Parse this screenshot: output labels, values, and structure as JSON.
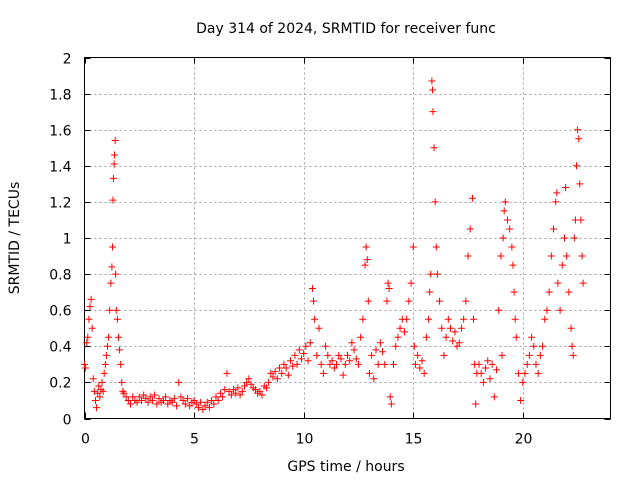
{
  "chart_data": {
    "type": "scatter",
    "title": "Day 314 of 2024, SRMTID for receiver func",
    "xlabel": "GPS time / hours",
    "ylabel": "SRMTID / TECUs",
    "xlim": [
      0,
      24
    ],
    "ylim": [
      0,
      2
    ],
    "xticks": [
      0,
      5,
      10,
      15,
      20
    ],
    "xtick_labels": [
      "0",
      "5",
      "10",
      "15",
      "20"
    ],
    "yticks": [
      0,
      0.2,
      0.4,
      0.6,
      0.8,
      1,
      1.2,
      1.4,
      1.6,
      1.8,
      2
    ],
    "ytick_labels": [
      "0",
      "0.2",
      "0.4",
      "0.6",
      "0.8",
      "1",
      "1.2",
      "1.4",
      "1.6",
      "1.8",
      "2"
    ],
    "grid": true,
    "marker": "+",
    "color": "#ff0000",
    "series": [
      {
        "name": "SRMTID",
        "points": [
          [
            0.0,
            0.3
          ],
          [
            0.05,
            0.28
          ],
          [
            0.1,
            0.42
          ],
          [
            0.15,
            0.45
          ],
          [
            0.2,
            0.55
          ],
          [
            0.25,
            0.62
          ],
          [
            0.3,
            0.66
          ],
          [
            0.35,
            0.5
          ],
          [
            0.4,
            0.22
          ],
          [
            0.45,
            0.15
          ],
          [
            0.5,
            0.1
          ],
          [
            0.55,
            0.06
          ],
          [
            0.6,
            0.14
          ],
          [
            0.65,
            0.18
          ],
          [
            0.7,
            0.12
          ],
          [
            0.75,
            0.16
          ],
          [
            0.8,
            0.2
          ],
          [
            0.85,
            0.15
          ],
          [
            0.9,
            0.25
          ],
          [
            0.95,
            0.3
          ],
          [
            1.0,
            0.35
          ],
          [
            1.05,
            0.4
          ],
          [
            1.1,
            0.45
          ],
          [
            1.15,
            0.6
          ],
          [
            1.2,
            0.75
          ],
          [
            1.25,
            0.84
          ],
          [
            1.28,
            0.95
          ],
          [
            1.3,
            1.21
          ],
          [
            1.32,
            1.33
          ],
          [
            1.35,
            1.41
          ],
          [
            1.37,
            1.46
          ],
          [
            1.4,
            1.54
          ],
          [
            1.42,
            0.8
          ],
          [
            1.45,
            0.6
          ],
          [
            1.5,
            0.55
          ],
          [
            1.55,
            0.45
          ],
          [
            1.6,
            0.38
          ],
          [
            1.65,
            0.3
          ],
          [
            1.7,
            0.2
          ],
          [
            1.75,
            0.15
          ],
          [
            1.8,
            0.14
          ],
          [
            1.9,
            0.12
          ],
          [
            2.0,
            0.1
          ],
          [
            2.1,
            0.08
          ],
          [
            2.2,
            0.12
          ],
          [
            2.3,
            0.1
          ],
          [
            2.4,
            0.09
          ],
          [
            2.5,
            0.12
          ],
          [
            2.6,
            0.1
          ],
          [
            2.7,
            0.13
          ],
          [
            2.8,
            0.11
          ],
          [
            2.9,
            0.09
          ],
          [
            3.0,
            0.12
          ],
          [
            3.1,
            0.1
          ],
          [
            3.2,
            0.13
          ],
          [
            3.3,
            0.08
          ],
          [
            3.4,
            0.11
          ],
          [
            3.5,
            0.09
          ],
          [
            3.6,
            0.1
          ],
          [
            3.7,
            0.12
          ],
          [
            3.8,
            0.08
          ],
          [
            3.9,
            0.1
          ],
          [
            4.0,
            0.09
          ],
          [
            4.1,
            0.11
          ],
          [
            4.2,
            0.07
          ],
          [
            4.3,
            0.2
          ],
          [
            4.4,
            0.12
          ],
          [
            4.5,
            0.1
          ],
          [
            4.6,
            0.08
          ],
          [
            4.7,
            0.11
          ],
          [
            4.8,
            0.07
          ],
          [
            4.9,
            0.09
          ],
          [
            5.0,
            0.1
          ],
          [
            5.1,
            0.08
          ],
          [
            5.2,
            0.06
          ],
          [
            5.3,
            0.09
          ],
          [
            5.4,
            0.05
          ],
          [
            5.5,
            0.07
          ],
          [
            5.6,
            0.09
          ],
          [
            5.7,
            0.06
          ],
          [
            5.8,
            0.1
          ],
          [
            5.9,
            0.08
          ],
          [
            6.0,
            0.12
          ],
          [
            6.1,
            0.1
          ],
          [
            6.2,
            0.14
          ],
          [
            6.3,
            0.12
          ],
          [
            6.4,
            0.16
          ],
          [
            6.5,
            0.25
          ],
          [
            6.6,
            0.15
          ],
          [
            6.7,
            0.13
          ],
          [
            6.8,
            0.16
          ],
          [
            6.9,
            0.14
          ],
          [
            7.0,
            0.17
          ],
          [
            7.1,
            0.13
          ],
          [
            7.2,
            0.15
          ],
          [
            7.3,
            0.18
          ],
          [
            7.4,
            0.2
          ],
          [
            7.5,
            0.22
          ],
          [
            7.6,
            0.19
          ],
          [
            7.7,
            0.17
          ],
          [
            7.8,
            0.16
          ],
          [
            7.9,
            0.14
          ],
          [
            8.0,
            0.15
          ],
          [
            8.1,
            0.13
          ],
          [
            8.2,
            0.18
          ],
          [
            8.3,
            0.17
          ],
          [
            8.4,
            0.2
          ],
          [
            8.5,
            0.25
          ],
          [
            8.6,
            0.23
          ],
          [
            8.7,
            0.26
          ],
          [
            8.8,
            0.22
          ],
          [
            8.9,
            0.28
          ],
          [
            9.0,
            0.25
          ],
          [
            9.1,
            0.3
          ],
          [
            9.2,
            0.28
          ],
          [
            9.3,
            0.24
          ],
          [
            9.4,
            0.32
          ],
          [
            9.5,
            0.29
          ],
          [
            9.6,
            0.35
          ],
          [
            9.7,
            0.3
          ],
          [
            9.8,
            0.38
          ],
          [
            9.9,
            0.33
          ],
          [
            10.0,
            0.36
          ],
          [
            10.1,
            0.4
          ],
          [
            10.2,
            0.32
          ],
          [
            10.3,
            0.42
          ],
          [
            10.4,
            0.72
          ],
          [
            10.45,
            0.65
          ],
          [
            10.5,
            0.55
          ],
          [
            10.6,
            0.35
          ],
          [
            10.7,
            0.5
          ],
          [
            10.8,
            0.3
          ],
          [
            10.9,
            0.25
          ],
          [
            11.0,
            0.4
          ],
          [
            11.1,
            0.35
          ],
          [
            11.2,
            0.3
          ],
          [
            11.3,
            0.32
          ],
          [
            11.4,
            0.28
          ],
          [
            11.5,
            0.3
          ],
          [
            11.6,
            0.35
          ],
          [
            11.7,
            0.33
          ],
          [
            11.8,
            0.24
          ],
          [
            11.9,
            0.3
          ],
          [
            12.0,
            0.35
          ],
          [
            12.1,
            0.32
          ],
          [
            12.2,
            0.42
          ],
          [
            12.3,
            0.38
          ],
          [
            12.4,
            0.33
          ],
          [
            12.5,
            0.3
          ],
          [
            12.6,
            0.45
          ],
          [
            12.7,
            0.55
          ],
          [
            12.8,
            0.85
          ],
          [
            12.85,
            0.95
          ],
          [
            12.9,
            0.88
          ],
          [
            12.95,
            0.65
          ],
          [
            13.0,
            0.25
          ],
          [
            13.1,
            0.35
          ],
          [
            13.2,
            0.22
          ],
          [
            13.3,
            0.38
          ],
          [
            13.4,
            0.3
          ],
          [
            13.5,
            0.42
          ],
          [
            13.6,
            0.37
          ],
          [
            13.7,
            0.3
          ],
          [
            13.8,
            0.65
          ],
          [
            13.85,
            0.75
          ],
          [
            13.9,
            0.72
          ],
          [
            13.95,
            0.12
          ],
          [
            14.0,
            0.08
          ],
          [
            14.1,
            0.3
          ],
          [
            14.2,
            0.4
          ],
          [
            14.3,
            0.45
          ],
          [
            14.4,
            0.5
          ],
          [
            14.5,
            0.55
          ],
          [
            14.6,
            0.48
          ],
          [
            14.7,
            0.55
          ],
          [
            14.8,
            0.65
          ],
          [
            14.9,
            0.75
          ],
          [
            15.0,
            0.95
          ],
          [
            15.05,
            0.4
          ],
          [
            15.1,
            0.3
          ],
          [
            15.2,
            0.35
          ],
          [
            15.3,
            0.28
          ],
          [
            15.4,
            0.32
          ],
          [
            15.5,
            0.25
          ],
          [
            15.6,
            0.45
          ],
          [
            15.7,
            0.55
          ],
          [
            15.75,
            0.7
          ],
          [
            15.8,
            0.8
          ],
          [
            15.85,
            1.87
          ],
          [
            15.88,
            1.82
          ],
          [
            15.9,
            1.7
          ],
          [
            15.95,
            1.5
          ],
          [
            16.0,
            1.2
          ],
          [
            16.05,
            0.95
          ],
          [
            16.1,
            0.8
          ],
          [
            16.2,
            0.65
          ],
          [
            16.3,
            0.5
          ],
          [
            16.4,
            0.35
          ],
          [
            16.5,
            0.45
          ],
          [
            16.6,
            0.55
          ],
          [
            16.7,
            0.5
          ],
          [
            16.8,
            0.43
          ],
          [
            16.9,
            0.48
          ],
          [
            17.0,
            0.4
          ],
          [
            17.1,
            0.42
          ],
          [
            17.2,
            0.5
          ],
          [
            17.3,
            0.55
          ],
          [
            17.4,
            0.65
          ],
          [
            17.5,
            0.9
          ],
          [
            17.6,
            1.05
          ],
          [
            17.7,
            1.22
          ],
          [
            17.75,
            0.55
          ],
          [
            17.8,
            0.3
          ],
          [
            17.85,
            0.08
          ],
          [
            17.9,
            0.25
          ],
          [
            18.0,
            0.3
          ],
          [
            18.1,
            0.25
          ],
          [
            18.2,
            0.2
          ],
          [
            18.3,
            0.28
          ],
          [
            18.4,
            0.32
          ],
          [
            18.5,
            0.22
          ],
          [
            18.6,
            0.3
          ],
          [
            18.7,
            0.12
          ],
          [
            18.8,
            0.27
          ],
          [
            18.9,
            0.6
          ],
          [
            19.0,
            0.9
          ],
          [
            19.05,
            0.35
          ],
          [
            19.1,
            1.0
          ],
          [
            19.15,
            1.15
          ],
          [
            19.2,
            1.2
          ],
          [
            19.3,
            1.1
          ],
          [
            19.4,
            1.05
          ],
          [
            19.5,
            0.95
          ],
          [
            19.55,
            0.85
          ],
          [
            19.6,
            0.7
          ],
          [
            19.65,
            0.55
          ],
          [
            19.7,
            0.45
          ],
          [
            19.8,
            0.25
          ],
          [
            19.9,
            0.1
          ],
          [
            20.0,
            0.2
          ],
          [
            20.1,
            0.25
          ],
          [
            20.2,
            0.3
          ],
          [
            20.3,
            0.35
          ],
          [
            20.4,
            0.45
          ],
          [
            20.5,
            0.4
          ],
          [
            20.6,
            0.3
          ],
          [
            20.7,
            0.25
          ],
          [
            20.8,
            0.35
          ],
          [
            20.9,
            0.4
          ],
          [
            21.0,
            0.55
          ],
          [
            21.1,
            0.6
          ],
          [
            21.2,
            0.7
          ],
          [
            21.3,
            0.9
          ],
          [
            21.4,
            1.05
          ],
          [
            21.5,
            1.2
          ],
          [
            21.55,
            1.25
          ],
          [
            21.6,
            0.75
          ],
          [
            21.7,
            0.6
          ],
          [
            21.8,
            0.85
          ],
          [
            21.9,
            1.0
          ],
          [
            21.95,
            1.28
          ],
          [
            22.0,
            0.9
          ],
          [
            22.1,
            0.7
          ],
          [
            22.2,
            0.5
          ],
          [
            22.25,
            0.4
          ],
          [
            22.3,
            0.35
          ],
          [
            22.35,
            1.0
          ],
          [
            22.4,
            1.1
          ],
          [
            22.45,
            1.4
          ],
          [
            22.5,
            1.6
          ],
          [
            22.55,
            1.55
          ],
          [
            22.6,
            1.3
          ],
          [
            22.65,
            1.1
          ],
          [
            22.7,
            0.9
          ],
          [
            22.75,
            0.75
          ]
        ]
      }
    ]
  }
}
